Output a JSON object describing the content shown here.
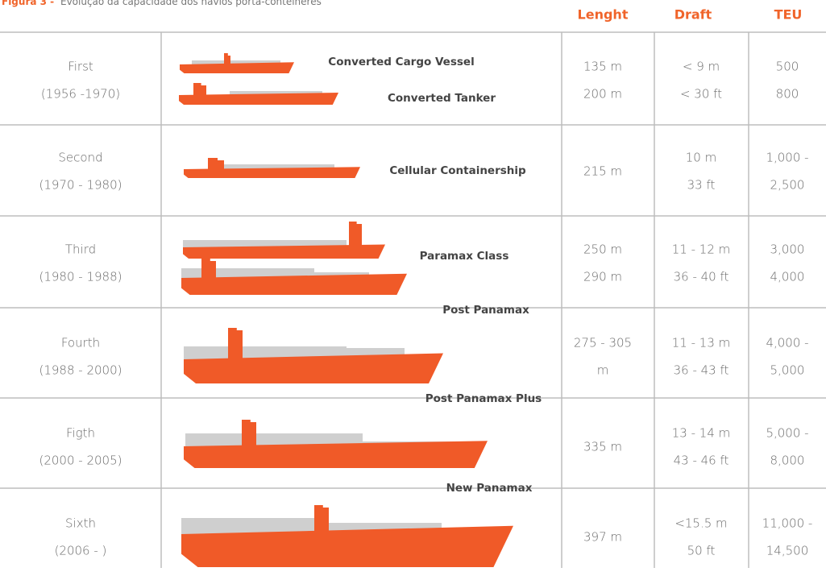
{
  "caption": {
    "label": "Figura 3 -",
    "text": "Evolução da capacidade dos navios porta-contêineres"
  },
  "header": [
    "Lenght",
    "Draft",
    "TEU"
  ],
  "rows": [
    {
      "generation": "First",
      "years": "(1956 -1970)",
      "vessels": [
        "Converted Cargo Vessel",
        "Converted Tanker"
      ],
      "length": [
        "135 m",
        "200 m"
      ],
      "draft": [
        "< 9 m",
        "< 30 ft"
      ],
      "teu": [
        "500",
        "800"
      ]
    },
    {
      "generation": "Second",
      "years": "(1970 - 1980)",
      "vessels": [
        "Cellular Containership"
      ],
      "length": [
        "215 m"
      ],
      "draft": [
        "10 m",
        "33 ft"
      ],
      "teu": [
        "1,000 -",
        "2,500"
      ]
    },
    {
      "generation": "Third",
      "years": "(1980 - 1988)",
      "vessels": [
        "Paramax Class"
      ],
      "length": [
        "250 m",
        "290 m"
      ],
      "draft": [
        "11 - 12 m",
        "36 - 40 ft"
      ],
      "teu": [
        "3,000",
        "4,000"
      ]
    },
    {
      "generation": "Fourth",
      "years": "(1988 - 2000)",
      "vessels": [
        "Post Panamax"
      ],
      "length": [
        "275 - 305",
        "m"
      ],
      "draft": [
        "11 - 13 m",
        "36 - 43 ft"
      ],
      "teu": [
        "4,000 -",
        "5,000"
      ]
    },
    {
      "generation": "Figth",
      "years": "(2000 - 2005)",
      "vessels": [
        "Post Panamax Plus"
      ],
      "length": [
        "335 m"
      ],
      "draft": [
        "13 - 14 m",
        "43 - 46 ft"
      ],
      "teu": [
        "5,000 -",
        "8,000"
      ]
    },
    {
      "generation": "Sixth",
      "years": "(2006 - )",
      "vessels": [
        "New Panamax"
      ],
      "length": [
        "397 m"
      ],
      "draft": [
        "<15.5 m",
        "50 ft"
      ],
      "teu": [
        "11,000 -",
        "14,500"
      ]
    }
  ]
}
